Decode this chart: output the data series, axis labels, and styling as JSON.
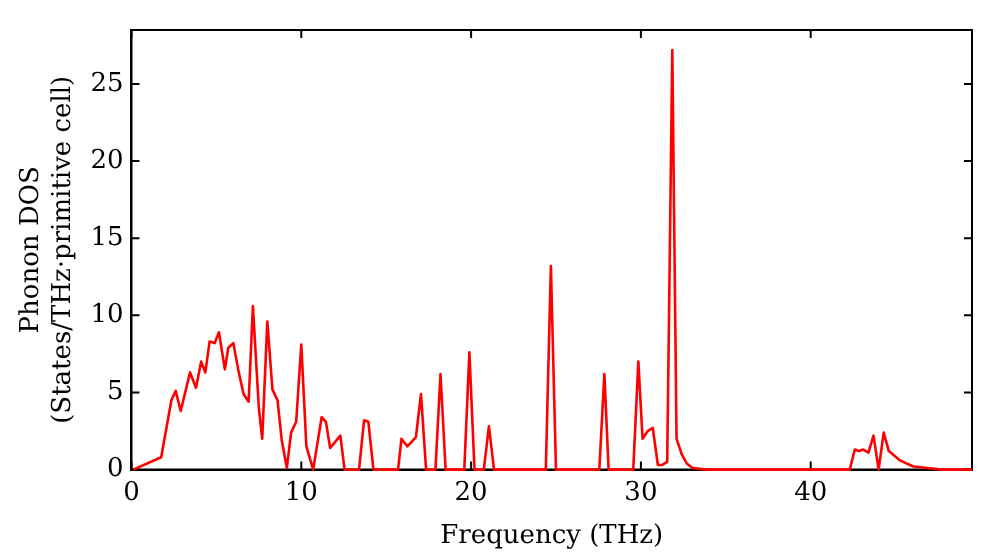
{
  "chart_data": {
    "type": "line",
    "xlabel": "Frequency (THz)",
    "ylabel": "Phonon DOS\n(States/THz·primitive cell)",
    "xlim": [
      0,
      49.5
    ],
    "ylim": [
      0,
      28.5
    ],
    "xticks": [
      0,
      10,
      20,
      30,
      40
    ],
    "yticks": [
      0,
      5,
      10,
      15,
      20,
      25
    ],
    "grid": false,
    "legend": false,
    "marker": "none",
    "line_style": "solid",
    "series": [
      {
        "color": "#ff0000",
        "x": [
          0.1,
          1.75,
          2.35,
          2.6,
          2.9,
          3.45,
          3.8,
          4.1,
          4.35,
          4.6,
          4.9,
          5.15,
          5.5,
          5.7,
          6.0,
          6.3,
          6.6,
          6.9,
          7.15,
          7.5,
          7.7,
          8.0,
          8.3,
          8.6,
          8.85,
          9.15,
          9.4,
          9.7,
          10.0,
          10.3,
          10.7,
          11.2,
          11.45,
          11.7,
          12.3,
          12.55,
          13.4,
          13.7,
          13.95,
          14.25,
          15.7,
          15.9,
          16.25,
          16.75,
          17.05,
          17.35,
          17.9,
          18.2,
          18.5,
          19.6,
          19.9,
          20.2,
          20.75,
          21.05,
          21.35,
          24.4,
          24.7,
          25.0,
          27.55,
          27.85,
          28.1,
          29.55,
          29.85,
          30.1,
          30.4,
          30.7,
          31.0,
          31.25,
          31.55,
          31.85,
          32.1,
          32.4,
          32.7,
          33.05,
          33.9,
          42.3,
          42.6,
          42.85,
          43.1,
          43.4,
          43.7,
          44.0,
          44.3,
          44.6,
          45.25,
          46.05,
          46.9,
          47.7,
          49.5
        ],
        "values": [
          0,
          0.8,
          4.5,
          5.1,
          3.8,
          6.3,
          5.3,
          7.0,
          6.3,
          8.3,
          8.2,
          8.9,
          6.5,
          7.9,
          8.2,
          6.4,
          4.9,
          4.4,
          10.6,
          4.0,
          2.0,
          9.6,
          5.2,
          4.5,
          1.9,
          0.1,
          2.4,
          3.1,
          8.1,
          1.5,
          0,
          3.4,
          3.1,
          1.4,
          2.2,
          0,
          0,
          3.2,
          3.1,
          0,
          0,
          2.0,
          1.5,
          2.1,
          4.9,
          0,
          0,
          6.2,
          0,
          0,
          7.6,
          0,
          0,
          2.8,
          0,
          0,
          13.2,
          0,
          0,
          6.2,
          0,
          0,
          7.0,
          2.0,
          2.5,
          2.7,
          0.3,
          0.3,
          0.5,
          27.2,
          2.0,
          1.0,
          0.4,
          0.1,
          0,
          0,
          1.3,
          1.2,
          1.3,
          1.1,
          2.2,
          0,
          2.4,
          1.2,
          0.6,
          0.2,
          0.1,
          0,
          0
        ]
      }
    ]
  }
}
